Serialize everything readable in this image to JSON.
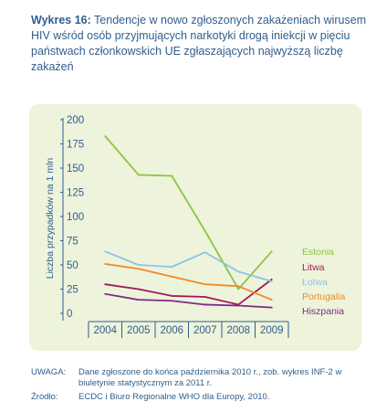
{
  "figure": {
    "title_lead": "Wykres 16:",
    "title_text": " Tendencje w nowo zgłoszonych zakażeniach wirusem HIV wśród osób przyjmujących narkotyki drogą iniekcji w pięciu państwach członkowskich UE zgłaszających najwyższą liczbę zakażeń"
  },
  "notes": [
    {
      "label": "UWAGA:",
      "text": "Dane zgłoszone do końca października 2010 r., zob. wykres INF-2 w biuletynie statystycznym za 2011 r."
    },
    {
      "label": "Źródło:",
      "text": "ECDC i Biuro Regionalne WHO dla Europy, 2010."
    }
  ],
  "chart_data": {
    "type": "line",
    "title": "",
    "xlabel": "",
    "ylabel": "Liczba przypadków na 1 mln",
    "categories": [
      "2004",
      "2005",
      "2006",
      "2007",
      "2008",
      "2009"
    ],
    "yticks": [
      0,
      25,
      50,
      75,
      100,
      125,
      150,
      175,
      200
    ],
    "ylim": [
      0,
      200
    ],
    "grid": false,
    "legend_position": "right",
    "series": [
      {
        "name": "Estonia",
        "color": "#8cc63f",
        "values": [
          183,
          143,
          142,
          85,
          25,
          64
        ]
      },
      {
        "name": "Litwa",
        "color": "#a2195b",
        "values": [
          30,
          25,
          18,
          17,
          9,
          35
        ]
      },
      {
        "name": "Łotwa",
        "color": "#8ec3e6",
        "values": [
          64,
          50,
          48,
          63,
          43,
          33
        ]
      },
      {
        "name": "Portugalia",
        "color": "#f08a24",
        "values": [
          51,
          46,
          38,
          30,
          28,
          14
        ]
      },
      {
        "name": "Hiszpania",
        "color": "#7b2c86",
        "values": [
          20,
          14,
          13,
          9,
          8,
          6
        ]
      }
    ]
  }
}
